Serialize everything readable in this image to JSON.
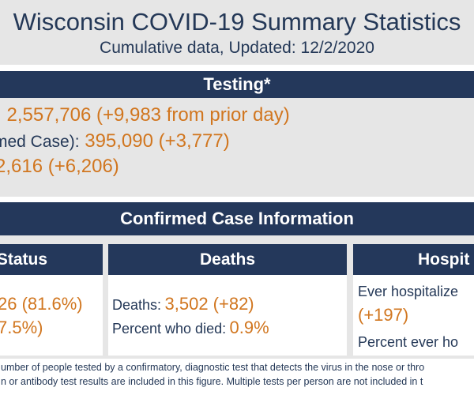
{
  "header": {
    "title": "Wisconsin COVID-19 Summary Statistics",
    "subtitle": "Cumulative data, Updated: 12/2/2020"
  },
  "testing": {
    "heading": "Testing*",
    "line1_label": ":",
    "line1_value": "2,557,706 (+9,983 from prior day)",
    "line2_label": "med Case):",
    "line2_value": "395,090 (+3,777)",
    "line3_value": "2,616 (+6,206)"
  },
  "confirmed": {
    "heading": "Confirmed Case Information",
    "status": {
      "heading": "Status",
      "line1": "26 (81.6%)",
      "line2": "7.5%)"
    },
    "deaths": {
      "heading": "Deaths",
      "deaths_label": "Deaths:",
      "deaths_value": "3,502 (+82)",
      "percent_label": "Percent who died:",
      "percent_value": "0.9%"
    },
    "hospital": {
      "heading": "Hospit",
      "line1_label": "Ever hospitalize",
      "line2_value": "(+197)",
      "line3_label": "Percent ever ho"
    }
  },
  "footnote": {
    "line1": "umber of people tested by a confirmatory, diagnostic test that detects the virus in the nose or thro",
    "line2": "n or antibody test results are included in this figure. Multiple tests per person are not included in t"
  }
}
